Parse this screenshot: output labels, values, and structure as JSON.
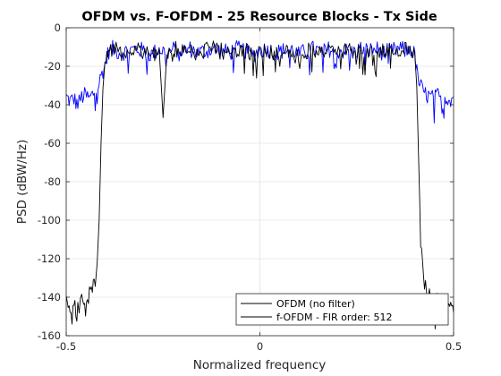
{
  "colors": {
    "ofdm": "#0000ff",
    "fofdm": "#000000",
    "grid": "#e5e5e5",
    "axis": "#262626"
  },
  "chart_data": {
    "type": "line",
    "title": "OFDM vs. F-OFDM - 25 Resource Blocks - Tx Side",
    "xlabel": "Normalized frequency",
    "ylabel": "PSD (dBW/Hz)",
    "xlim": [
      -0.5,
      0.5
    ],
    "ylim": [
      -160,
      0
    ],
    "xticks": [
      -0.5,
      0,
      0.5
    ],
    "xtick_labels": [
      "-0.5",
      "0",
      "0.5"
    ],
    "yticks": [
      0,
      -20,
      -40,
      -60,
      -80,
      -100,
      -120,
      -140,
      -160
    ],
    "ytick_labels": [
      "0",
      "-20",
      "-40",
      "-60",
      "-80",
      "-100",
      "-120",
      "-140",
      "-160"
    ],
    "grid": true,
    "legend_position": "bottom-right",
    "series": [
      {
        "name": "OFDM (no filter)",
        "color": "#0000ff",
        "x": [
          -0.5,
          -0.49,
          -0.48,
          -0.47,
          -0.46,
          -0.45,
          -0.44,
          -0.43,
          -0.42,
          -0.415,
          -0.41,
          -0.405,
          -0.4,
          -0.39,
          -0.38,
          -0.36,
          -0.34,
          -0.32,
          -0.3,
          -0.28,
          -0.26,
          -0.25,
          -0.24,
          -0.22,
          -0.2,
          -0.18,
          -0.16,
          -0.14,
          -0.12,
          -0.1,
          -0.08,
          -0.06,
          -0.04,
          -0.02,
          0,
          0.02,
          0.04,
          0.06,
          0.08,
          0.1,
          0.12,
          0.14,
          0.16,
          0.18,
          0.2,
          0.22,
          0.24,
          0.26,
          0.28,
          0.3,
          0.32,
          0.34,
          0.36,
          0.38,
          0.39,
          0.395,
          0.4,
          0.405,
          0.41,
          0.415,
          0.42,
          0.43,
          0.44,
          0.45,
          0.46,
          0.47,
          0.48,
          0.49,
          0.5
        ],
        "y": [
          -36,
          -38,
          -37,
          -40,
          -36,
          -35,
          -37,
          -34,
          -31,
          -29,
          -25,
          -22,
          -20,
          -12,
          -11,
          -13,
          -12,
          -11,
          -12,
          -14,
          -11,
          -12,
          -13,
          -11,
          -12,
          -11,
          -13,
          -12,
          -11,
          -12,
          -13,
          -11,
          -12,
          -14,
          -12,
          -11,
          -13,
          -12,
          -11,
          -14,
          -12,
          -11,
          -13,
          -11,
          -12,
          -12,
          -13,
          -11,
          -12,
          -11,
          -13,
          -12,
          -11,
          -12,
          -11,
          -13,
          -14,
          -23,
          -28,
          -30,
          -33,
          -35,
          -36,
          -37,
          -35,
          -38,
          -36,
          -37,
          -36
        ]
      },
      {
        "name": "f-OFDM - FIR order: 512",
        "color": "#000000",
        "x": [
          -0.5,
          -0.49,
          -0.48,
          -0.47,
          -0.46,
          -0.45,
          -0.44,
          -0.43,
          -0.425,
          -0.42,
          -0.415,
          -0.41,
          -0.405,
          -0.4,
          -0.39,
          -0.38,
          -0.36,
          -0.34,
          -0.32,
          -0.3,
          -0.28,
          -0.26,
          -0.25,
          -0.24,
          -0.22,
          -0.2,
          -0.18,
          -0.16,
          -0.14,
          -0.12,
          -0.1,
          -0.08,
          -0.06,
          -0.04,
          -0.02,
          0,
          0.02,
          0.04,
          0.06,
          0.08,
          0.1,
          0.12,
          0.14,
          0.16,
          0.18,
          0.2,
          0.22,
          0.24,
          0.26,
          0.28,
          0.3,
          0.32,
          0.34,
          0.36,
          0.38,
          0.39,
          0.395,
          0.4,
          0.405,
          0.41,
          0.415,
          0.42,
          0.425,
          0.43,
          0.44,
          0.45,
          0.46,
          0.47,
          0.48,
          0.49,
          0.5
        ],
        "y": [
          -143,
          -145,
          -141,
          -147,
          -142,
          -146,
          -138,
          -135,
          -130,
          -122,
          -100,
          -60,
          -30,
          -15,
          -12,
          -11,
          -13,
          -12,
          -11,
          -12,
          -14,
          -11,
          -47,
          -13,
          -11,
          -12,
          -11,
          -13,
          -12,
          -11,
          -12,
          -13,
          -11,
          -12,
          -14,
          -12,
          -11,
          -13,
          -12,
          -11,
          -14,
          -12,
          -11,
          -13,
          -11,
          -12,
          -12,
          -13,
          -11,
          -12,
          -11,
          -13,
          -12,
          -11,
          -12,
          -11,
          -13,
          -14,
          -30,
          -70,
          -110,
          -125,
          -132,
          -137,
          -140,
          -143,
          -141,
          -145,
          -140,
          -144,
          -148
        ]
      }
    ]
  }
}
